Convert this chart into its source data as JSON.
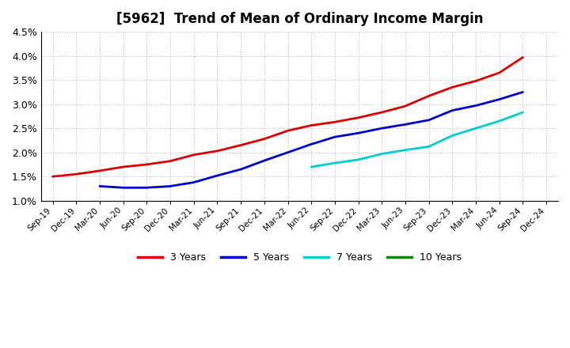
{
  "title": "[5962]  Trend of Mean of Ordinary Income Margin",
  "x_labels": [
    "Sep-19",
    "Dec-19",
    "Mar-20",
    "Jun-20",
    "Sep-20",
    "Dec-20",
    "Mar-21",
    "Jun-21",
    "Sep-21",
    "Dec-21",
    "Mar-22",
    "Jun-22",
    "Sep-22",
    "Dec-22",
    "Mar-23",
    "Jun-23",
    "Sep-23",
    "Dec-23",
    "Mar-24",
    "Jun-24",
    "Sep-24",
    "Dec-24"
  ],
  "series_3y": {
    "label": "3 Years",
    "color": "#dd0000",
    "values": [
      0.015,
      0.0155,
      0.0162,
      0.017,
      0.0175,
      0.0182,
      0.0195,
      0.0203,
      0.0215,
      0.0228,
      0.0245,
      0.0256,
      0.0263,
      0.0272,
      0.0283,
      0.0296,
      0.0317,
      0.0335,
      0.0348,
      0.0365,
      0.0397,
      null
    ]
  },
  "series_5y": {
    "label": "5 Years",
    "color": "#0000cc",
    "values": [
      null,
      null,
      0.013,
      0.0127,
      0.0127,
      0.013,
      0.0138,
      0.0152,
      0.0165,
      0.0183,
      0.02,
      0.0217,
      0.0232,
      0.024,
      0.025,
      0.0258,
      0.0267,
      0.0287,
      0.0297,
      0.031,
      0.0325,
      null
    ]
  },
  "series_7y": {
    "label": "7 Years",
    "color": "#00cccc",
    "values": [
      null,
      null,
      null,
      null,
      null,
      null,
      null,
      null,
      null,
      null,
      null,
      0.017,
      0.0178,
      0.0185,
      0.0197,
      0.0205,
      0.0212,
      0.0235,
      0.025,
      0.0265,
      0.0283,
      null
    ]
  },
  "series_10y": {
    "label": "10 Years",
    "color": "#008800",
    "values": [
      null,
      null,
      null,
      null,
      null,
      null,
      null,
      null,
      null,
      null,
      null,
      null,
      null,
      null,
      null,
      null,
      null,
      null,
      null,
      null,
      null,
      null
    ]
  },
  "ylim": [
    0.01,
    0.045
  ],
  "yticks": [
    0.01,
    0.015,
    0.02,
    0.025,
    0.03,
    0.035,
    0.04,
    0.045
  ],
  "background_color": "#ffffff",
  "grid_color": "#bbbbbb",
  "title_fontsize": 12
}
